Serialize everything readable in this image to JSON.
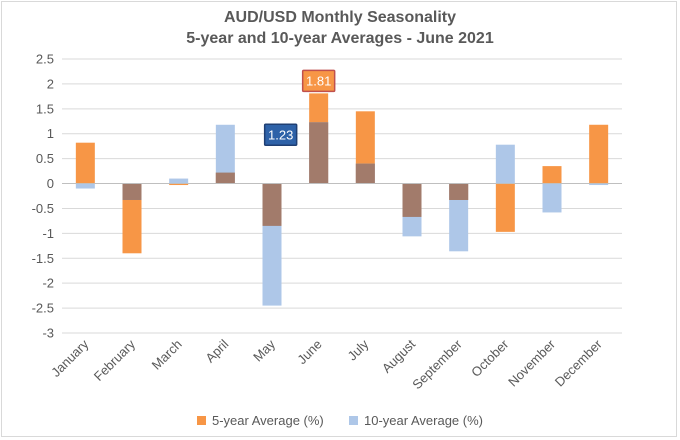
{
  "chart_data": {
    "type": "bar",
    "title": "AUD/USD Monthly Seasonality",
    "subtitle": "5-year and 10-year Averages - June 2021",
    "categories": [
      "January",
      "February",
      "March",
      "April",
      "May",
      "June",
      "July",
      "August",
      "September",
      "October",
      "November",
      "December"
    ],
    "series": [
      {
        "name": "5-year Average (%)",
        "color": "#f79646",
        "values": [
          0.82,
          -1.4,
          -0.03,
          0.22,
          -0.85,
          1.81,
          1.45,
          -0.67,
          -0.33,
          -0.97,
          0.35,
          1.18
        ]
      },
      {
        "name": "10-year Average (%)",
        "color": "#aec7e8",
        "values": [
          -0.1,
          -0.33,
          0.1,
          1.18,
          -2.45,
          1.23,
          0.4,
          -1.06,
          -1.36,
          0.78,
          -0.58,
          -0.03
        ]
      }
    ],
    "overlap_color": "#a27b6b",
    "ylim": [
      -3,
      2.5
    ],
    "yticks": [
      "2.5",
      "2",
      "1.5",
      "1",
      "0.5",
      "0",
      "-0.5",
      "-1",
      "-1.5",
      "-2",
      "-2.5",
      "-3"
    ],
    "grid": true,
    "legend": "bottom",
    "annotations": [
      {
        "label": "1.81",
        "series": "5-year Average (%)",
        "category": "June",
        "fill": "#f79646",
        "border": "#c0504d"
      },
      {
        "label": "1.23",
        "series": "10-year Average (%)",
        "category": "June",
        "fill": "#2e62a8",
        "border": "#1f3f73"
      }
    ]
  }
}
